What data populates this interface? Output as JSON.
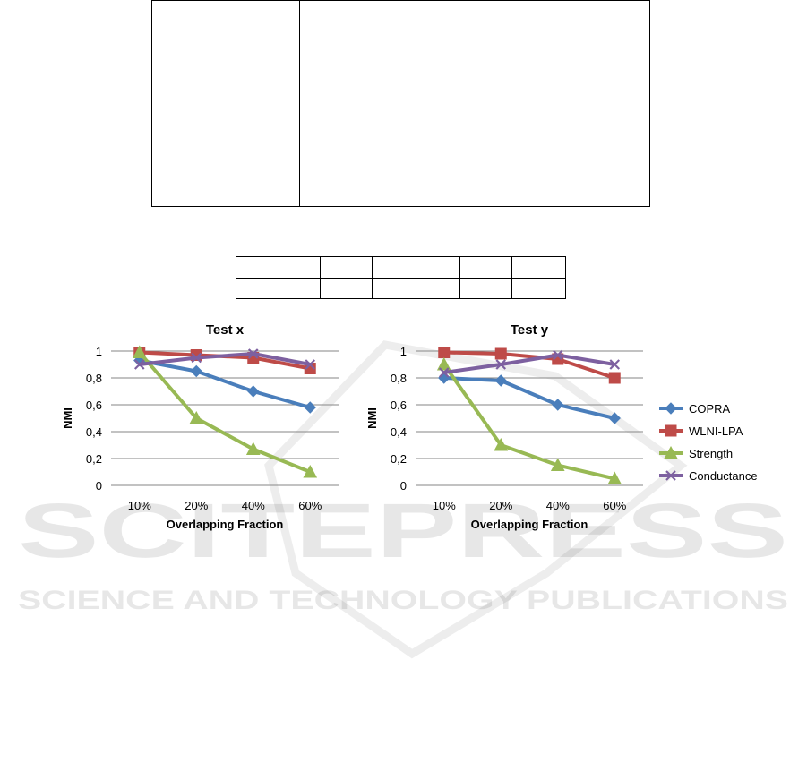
{
  "table_top": {
    "rows": 2,
    "cols": 3
  },
  "table_mid": {
    "rows": 2,
    "cols": 6
  },
  "watermark": {
    "line1": "SCITEPRESS",
    "line2": "SCIENCE AND TECHNOLOGY PUBLICATIONS"
  },
  "chart_data": [
    {
      "type": "line",
      "title": "Test x",
      "xlabel": "Overlapping Fraction",
      "ylabel": "NMI",
      "categories": [
        "10%",
        "20%",
        "40%",
        "60%"
      ],
      "ylim": [
        0,
        1
      ],
      "yticks": [
        "0",
        "0,2",
        "0,4",
        "0,6",
        "0,8",
        "1"
      ],
      "grid": true,
      "legend": false,
      "series": [
        {
          "name": "COPRA",
          "color": "#4a7ebb",
          "marker": "diamond",
          "values": [
            0.93,
            0.85,
            0.7,
            0.58
          ]
        },
        {
          "name": "WLNI-LPA",
          "color": "#be4b48",
          "marker": "square",
          "values": [
            0.99,
            0.97,
            0.95,
            0.87
          ]
        },
        {
          "name": "Strength",
          "color": "#98b954",
          "marker": "triangle",
          "values": [
            0.99,
            0.5,
            0.27,
            0.1
          ]
        },
        {
          "name": "Conductance",
          "color": "#7d60a0",
          "marker": "x",
          "values": [
            0.9,
            0.95,
            0.98,
            0.9
          ]
        }
      ]
    },
    {
      "type": "line",
      "title": "Test y",
      "xlabel": "Overlapping Fraction",
      "ylabel": "NMI",
      "categories": [
        "10%",
        "20%",
        "40%",
        "60%"
      ],
      "ylim": [
        0,
        1
      ],
      "yticks": [
        "0",
        "0,2",
        "0,4",
        "0,6",
        "0,8",
        "1"
      ],
      "grid": true,
      "legend": "right",
      "series": [
        {
          "name": "COPRA",
          "color": "#4a7ebb",
          "marker": "diamond",
          "values": [
            0.8,
            0.78,
            0.6,
            0.5
          ]
        },
        {
          "name": "WLNI-LPA",
          "color": "#be4b48",
          "marker": "square",
          "values": [
            0.99,
            0.98,
            0.94,
            0.8
          ]
        },
        {
          "name": "Strength",
          "color": "#98b954",
          "marker": "triangle",
          "values": [
            0.9,
            0.3,
            0.15,
            0.05
          ]
        },
        {
          "name": "Conductance",
          "color": "#7d60a0",
          "marker": "x",
          "values": [
            0.84,
            0.9,
            0.97,
            0.9
          ]
        }
      ]
    }
  ]
}
